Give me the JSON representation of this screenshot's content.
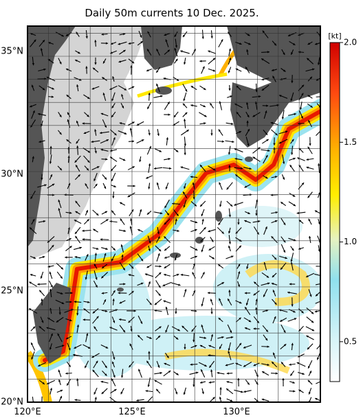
{
  "title": "Daily 50m currents 10 Dec. 2025.",
  "lat_labels": [
    "35°N",
    "30°N",
    "25°N",
    "20°N"
  ],
  "lon_labels": [
    "120°E",
    "125°E",
    "130°E"
  ],
  "colorbar": {
    "unit": "[kt]",
    "range": [
      0.3,
      2
    ],
    "ticks": [
      {
        "value": 2,
        "label": "2.0"
      },
      1.5,
      {
        "value": 1,
        "label": "1.0"
      },
      0.5
    ]
  }
}
